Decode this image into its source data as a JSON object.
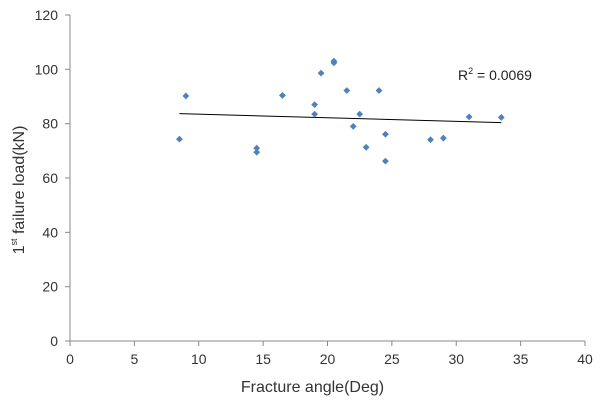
{
  "chart_data": {
    "type": "scatter",
    "title": "",
    "xlabel": "Fracture angle(Deg)",
    "ylabel": {
      "base": "1",
      "sup": "st",
      "rest": " failure load(kN)"
    },
    "xlim": [
      0,
      40
    ],
    "ylim": [
      0,
      120
    ],
    "xticks": [
      "0",
      "5",
      "10",
      "15",
      "20",
      "25",
      "30",
      "35",
      "40"
    ],
    "yticks": [
      "0",
      "20",
      "40",
      "60",
      "80",
      "100",
      "120"
    ],
    "grid": false,
    "legend": false,
    "marker_color": "#4f81bd",
    "trendline_color": "#000000",
    "points": [
      {
        "x": 8.5,
        "y": 74.3
      },
      {
        "x": 9.0,
        "y": 90.2
      },
      {
        "x": 14.5,
        "y": 71.0
      },
      {
        "x": 14.5,
        "y": 69.5
      },
      {
        "x": 16.5,
        "y": 90.4
      },
      {
        "x": 19.0,
        "y": 87.0
      },
      {
        "x": 19.0,
        "y": 83.5
      },
      {
        "x": 19.5,
        "y": 98.6
      },
      {
        "x": 20.5,
        "y": 103.0
      },
      {
        "x": 20.5,
        "y": 102.4
      },
      {
        "x": 21.5,
        "y": 92.2
      },
      {
        "x": 22.0,
        "y": 79.0
      },
      {
        "x": 22.5,
        "y": 83.5
      },
      {
        "x": 23.0,
        "y": 71.3
      },
      {
        "x": 24.0,
        "y": 92.2
      },
      {
        "x": 24.5,
        "y": 76.1
      },
      {
        "x": 24.5,
        "y": 66.2
      },
      {
        "x": 28.0,
        "y": 74.1
      },
      {
        "x": 29.0,
        "y": 74.7
      },
      {
        "x": 31.0,
        "y": 82.5
      },
      {
        "x": 33.5,
        "y": 82.3
      }
    ],
    "trendline": {
      "x": [
        8.5,
        33.5
      ],
      "y": [
        83.7,
        80.4
      ]
    },
    "r2_label": {
      "base": "R",
      "sup": "2",
      "rest": " = 0.0069"
    }
  }
}
